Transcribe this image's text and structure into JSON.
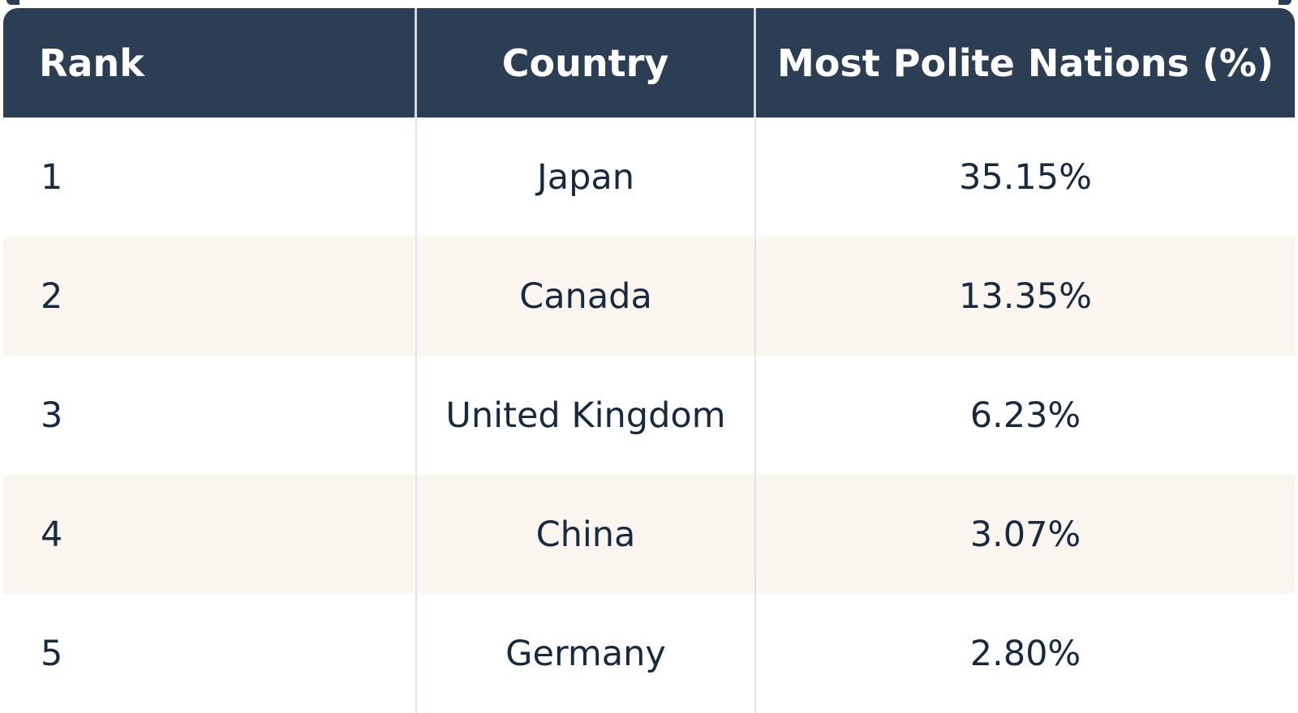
{
  "chart_data": {
    "type": "table",
    "columns": [
      "Rank",
      "Country",
      "Most Polite Nations (%)"
    ],
    "rows": [
      {
        "rank": "1",
        "country": "Japan",
        "value": "35.15%"
      },
      {
        "rank": "2",
        "country": "Canada",
        "value": "13.35%"
      },
      {
        "rank": "3",
        "country": "United Kingdom",
        "value": "6.23%"
      },
      {
        "rank": "4",
        "country": "China",
        "value": "3.07%"
      },
      {
        "rank": "5",
        "country": "Germany",
        "value": "2.80%"
      }
    ]
  },
  "colors": {
    "header_bg": "#2c3e53",
    "header_text": "#ffffff",
    "row_bg": "#ffffff",
    "row_alt_bg": "#faf5ee",
    "body_text": "#182a40",
    "divider": "#dfe4ee"
  }
}
